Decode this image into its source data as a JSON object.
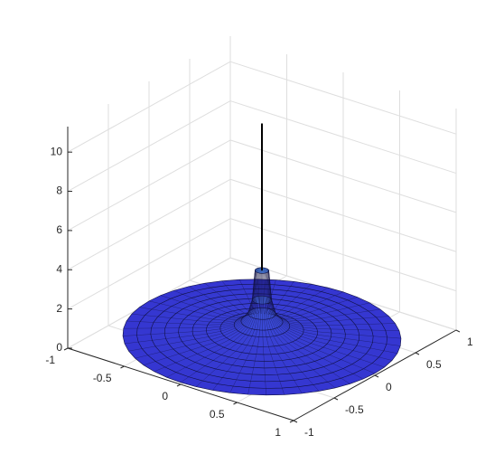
{
  "chart_data": {
    "type": "surface3d",
    "xlim": [
      -1,
      1
    ],
    "ylim": [
      -1,
      1
    ],
    "zlim": [
      0,
      11.3
    ],
    "xticks": [
      -1,
      -0.5,
      0,
      0.5,
      1
    ],
    "yticks": [
      -1,
      -0.5,
      0,
      0.5,
      1
    ],
    "zticks": [
      0,
      2,
      4,
      6,
      8,
      10
    ],
    "grid": true,
    "r": [
      1,
      0.9,
      0.8,
      0.7,
      0.6,
      0.5,
      0.4,
      0.3,
      0.2,
      0.15,
      0.1,
      0.07,
      0.05,
      0.03,
      0.02,
      0.01
    ],
    "z": [
      0.1,
      0.15,
      0.2,
      0.25,
      0.3,
      0.35,
      0.4,
      0.5,
      0.7,
      0.9,
      1.3,
      2,
      3.5,
      5.5,
      8,
      11
    ],
    "color": "#3434d0",
    "peak_color": "#58a8f0"
  }
}
